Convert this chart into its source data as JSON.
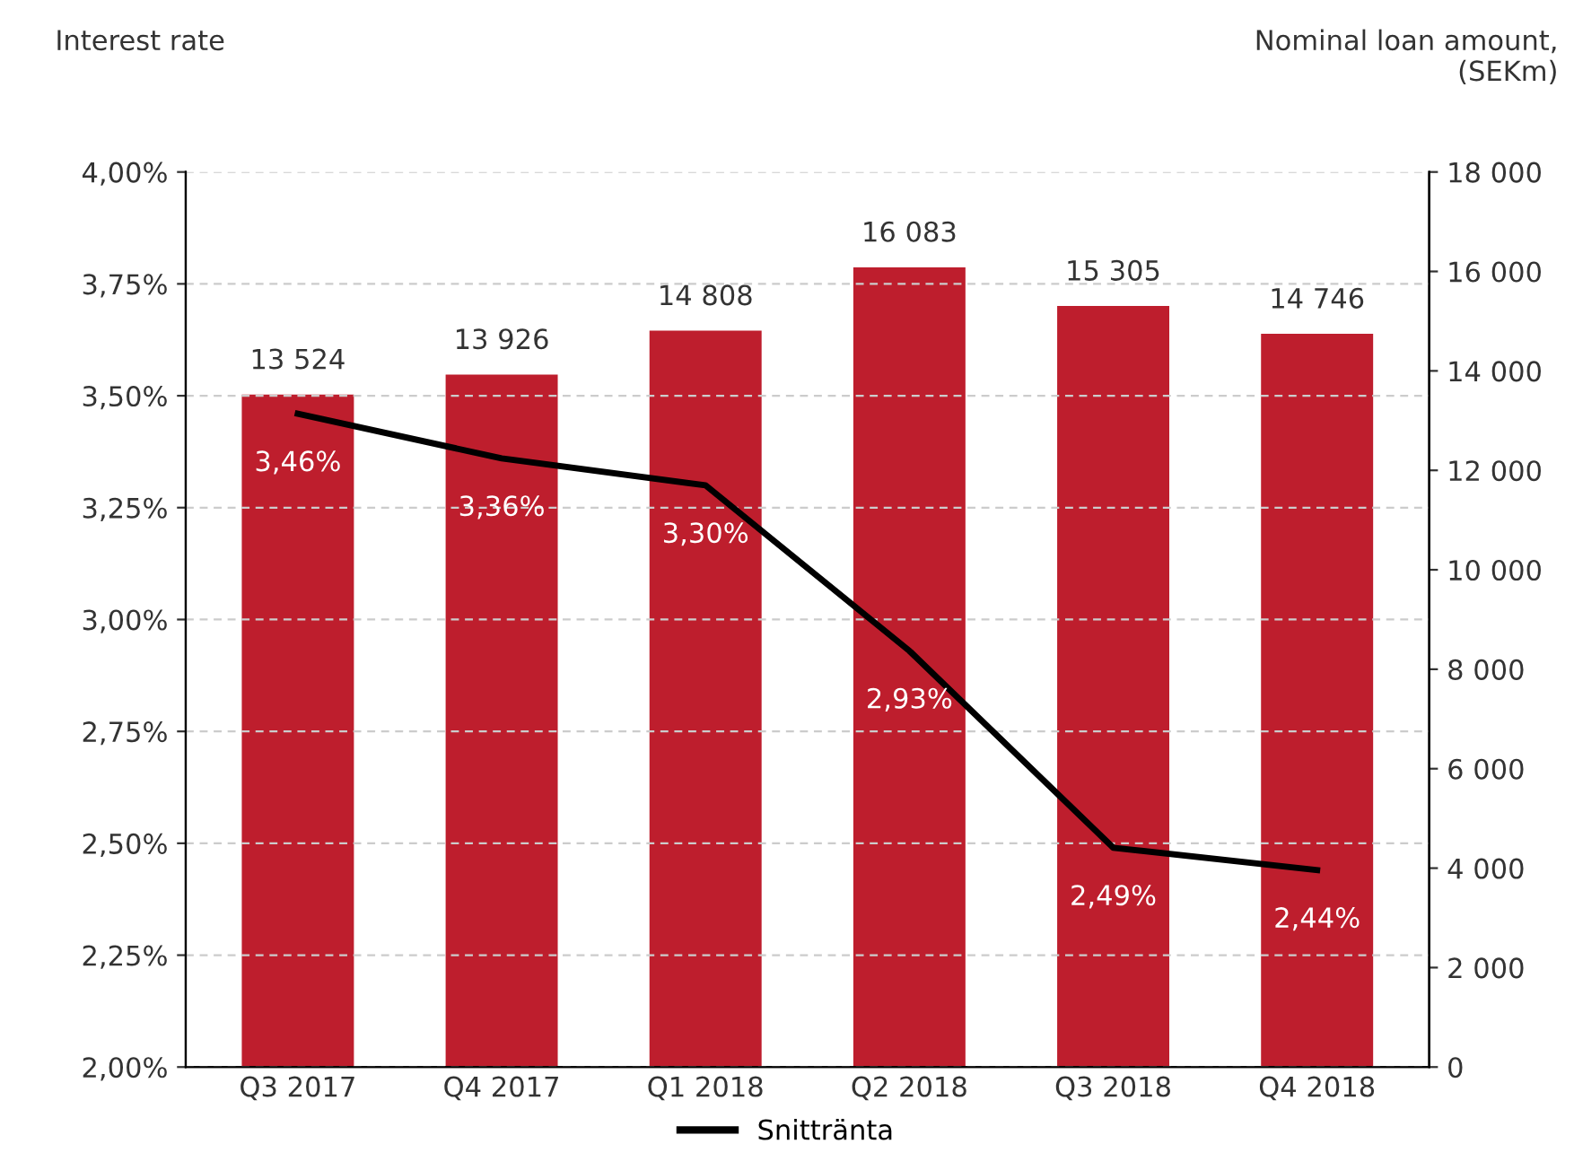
{
  "chart_data": {
    "type": "bar",
    "categories": [
      "Q3 2017",
      "Q4 2017",
      "Q1 2018",
      "Q2 2018",
      "Q3 2018",
      "Q4 2018"
    ],
    "ylabel": "Interest rate",
    "y2label": "Nominal loan amount,\n(SEKm)",
    "series": [
      {
        "axis": "y2",
        "color": "#be1e2d",
        "values": [
          13524,
          13926,
          14808,
          16083,
          15305,
          14746
        ],
        "value_labels": [
          "13 524",
          "13 926",
          "14 808",
          "16 083",
          "15 305",
          "14 746"
        ]
      },
      {
        "type": "line",
        "axis": "y",
        "name": "Snittränta",
        "color": "#000000",
        "values": [
          3.46,
          3.36,
          3.3,
          2.93,
          2.49,
          2.44
        ],
        "value_labels": [
          "3,46%",
          "3,36%",
          "3,30%",
          "2,93%",
          "2,49%",
          "2,44%"
        ]
      }
    ],
    "ylim": [
      2.0,
      4.0
    ],
    "yticks": [
      {
        "value": 2.0,
        "label": "2,00%"
      },
      {
        "value": 2.25,
        "label": "2,25%"
      },
      {
        "value": 2.5,
        "label": "2,50%"
      },
      {
        "value": 2.75,
        "label": "2,75%"
      },
      {
        "value": 3.0,
        "label": "3,00%"
      },
      {
        "value": 3.25,
        "label": "3,25%"
      },
      {
        "value": 3.5,
        "label": "3,50%"
      },
      {
        "value": 3.75,
        "label": "3,75%"
      },
      {
        "value": 4.0,
        "label": "4,00%"
      }
    ],
    "y2lim": [
      0,
      18000
    ],
    "y2ticks": [
      {
        "value": 0,
        "label": "0"
      },
      {
        "value": 2000,
        "label": "2 000"
      },
      {
        "value": 4000,
        "label": "4 000"
      },
      {
        "value": 6000,
        "label": "6 000"
      },
      {
        "value": 8000,
        "label": "8 000"
      },
      {
        "value": 10000,
        "label": "10 000"
      },
      {
        "value": 12000,
        "label": "12 000"
      },
      {
        "value": 14000,
        "label": "14 000"
      },
      {
        "value": 16000,
        "label": "16 000"
      },
      {
        "value": 18000,
        "label": "18 000"
      }
    ],
    "grid": "y",
    "legend": "bottom",
    "line_style": "solid",
    "marker": "none"
  }
}
